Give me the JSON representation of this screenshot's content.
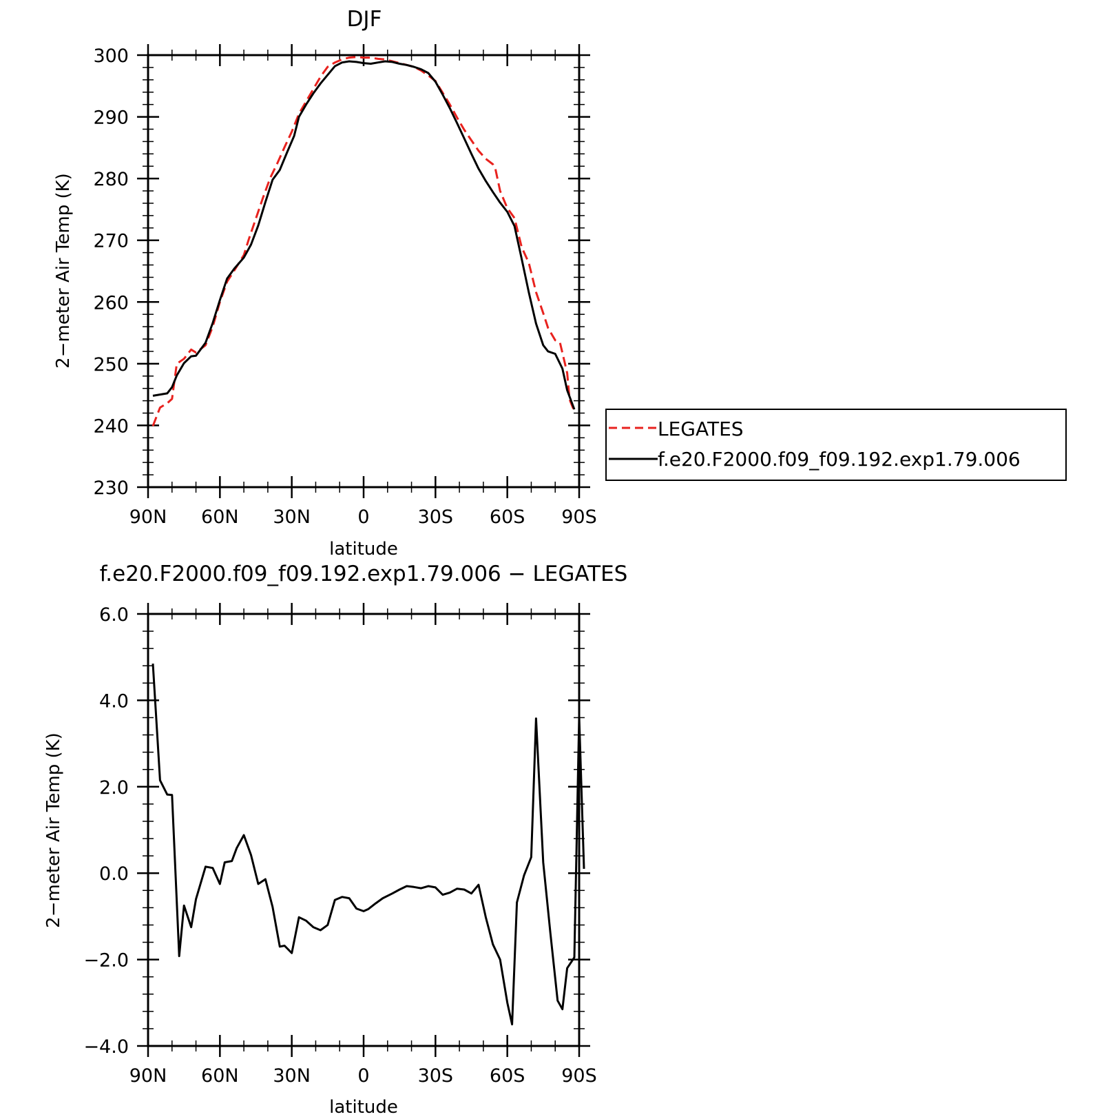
{
  "chart_data": [
    {
      "type": "line",
      "title": "DJF",
      "xlabel": "latitude",
      "ylabel": "2−meter Air Temp (K)",
      "x_tick_labels": [
        "90N",
        "60N",
        "30N",
        "0",
        "30S",
        "60S",
        "90S"
      ],
      "x_ticks": [
        90,
        60,
        30,
        0,
        -30,
        -60,
        -90
      ],
      "xlim": [
        90,
        -90
      ],
      "y_tick_labels": [
        "230",
        "240",
        "250",
        "260",
        "270",
        "280",
        "290",
        "300"
      ],
      "y_ticks": [
        230,
        240,
        250,
        260,
        270,
        280,
        290,
        300
      ],
      "ylim": [
        230,
        300
      ],
      "legend_position": "right",
      "series": [
        {
          "name": "LEGATES",
          "color": "#e8221e",
          "dash": "dashed",
          "points": [
            [
              88,
              239.9
            ],
            [
              85,
              242.9
            ],
            [
              82,
              243.6
            ],
            [
              80,
              244.3
            ],
            [
              78,
              250.0
            ],
            [
              75,
              250.8
            ],
            [
              72,
              252.3
            ],
            [
              70,
              251.8
            ],
            [
              66,
              253.0
            ],
            [
              63,
              256.0
            ],
            [
              60,
              260.0
            ],
            [
              57,
              263.3
            ],
            [
              54,
              265.1
            ],
            [
              50,
              267.6
            ],
            [
              48,
              270.1
            ],
            [
              45,
              273.5
            ],
            [
              42,
              276.9
            ],
            [
              39,
              280.1
            ],
            [
              36,
              282.5
            ],
            [
              33,
              285.1
            ],
            [
              30,
              287.6
            ],
            [
              27,
              290.5
            ],
            [
              24,
              292.5
            ],
            [
              21,
              294.5
            ],
            [
              18,
              296.5
            ],
            [
              15,
              298.1
            ],
            [
              12,
              298.8
            ],
            [
              9,
              299.3
            ],
            [
              6,
              299.6
            ],
            [
              3,
              299.7
            ],
            [
              0,
              299.6
            ],
            [
              -3,
              299.6
            ],
            [
              -6,
              299.4
            ],
            [
              -9,
              299.3
            ],
            [
              -12,
              299.0
            ],
            [
              -15,
              298.7
            ],
            [
              -18,
              298.4
            ],
            [
              -21,
              298.1
            ],
            [
              -24,
              297.5
            ],
            [
              -27,
              296.7
            ],
            [
              -30,
              295.8
            ],
            [
              -33,
              293.9
            ],
            [
              -36,
              292.0
            ],
            [
              -39,
              289.9
            ],
            [
              -42,
              287.9
            ],
            [
              -45,
              286.2
            ],
            [
              -48,
              284.5
            ],
            [
              -51,
              283.2
            ],
            [
              -54,
              282.3
            ],
            [
              -55,
              281.6
            ],
            [
              -57,
              278.0
            ],
            [
              -60,
              275.2
            ],
            [
              -63,
              273.6
            ],
            [
              -66,
              268.9
            ],
            [
              -69,
              266.3
            ],
            [
              -72,
              261.6
            ],
            [
              -75,
              258.2
            ],
            [
              -77,
              255.8
            ],
            [
              -80,
              253.8
            ],
            [
              -82,
              253.4
            ],
            [
              -85,
              248.5
            ],
            [
              -86,
              244.2
            ],
            [
              -88,
              242.3
            ]
          ]
        },
        {
          "name": "f.e20.F2000.f09_f09.192.exp1.79.006",
          "color": "#000000",
          "dash": "solid",
          "points": [
            [
              88,
              244.8
            ],
            [
              85,
              245.0
            ],
            [
              82,
              245.2
            ],
            [
              80,
              246.2
            ],
            [
              78,
              248.1
            ],
            [
              75,
              250.1
            ],
            [
              72,
              251.2
            ],
            [
              70,
              251.3
            ],
            [
              66,
              253.4
            ],
            [
              63,
              256.6
            ],
            [
              60,
              260.3
            ],
            [
              57,
              263.8
            ],
            [
              54,
              265.4
            ],
            [
              50,
              267.2
            ],
            [
              47,
              269.3
            ],
            [
              44,
              272.4
            ],
            [
              41,
              276.2
            ],
            [
              38,
              279.8
            ],
            [
              35,
              281.4
            ],
            [
              32,
              284.2
            ],
            [
              29,
              286.9
            ],
            [
              27,
              290.0
            ],
            [
              24,
              292.0
            ],
            [
              21,
              293.8
            ],
            [
              18,
              295.4
            ],
            [
              15,
              296.8
            ],
            [
              12,
              298.2
            ],
            [
              9,
              298.8
            ],
            [
              6,
              299.0
            ],
            [
              3,
              298.9
            ],
            [
              0,
              298.7
            ],
            [
              -3,
              298.6
            ],
            [
              -6,
              298.8
            ],
            [
              -9,
              299.0
            ],
            [
              -12,
              298.9
            ],
            [
              -15,
              298.6
            ],
            [
              -18,
              298.4
            ],
            [
              -21,
              298.1
            ],
            [
              -24,
              297.7
            ],
            [
              -27,
              297.1
            ],
            [
              -30,
              295.7
            ],
            [
              -33,
              293.6
            ],
            [
              -36,
              291.4
            ],
            [
              -39,
              289.0
            ],
            [
              -42,
              286.5
            ],
            [
              -45,
              284.0
            ],
            [
              -48,
              281.6
            ],
            [
              -51,
              279.6
            ],
            [
              -54,
              277.8
            ],
            [
              -57,
              276.1
            ],
            [
              -60,
              274.6
            ],
            [
              -63,
              272.3
            ],
            [
              -66,
              267.0
            ],
            [
              -69,
              261.5
            ],
            [
              -72,
              256.5
            ],
            [
              -75,
              253.0
            ],
            [
              -77,
              252.0
            ],
            [
              -80,
              251.6
            ],
            [
              -83,
              249.2
            ],
            [
              -85,
              245.7
            ],
            [
              -88,
              242.6
            ]
          ]
        }
      ]
    },
    {
      "type": "line",
      "title": "f.e20.F2000.f09_f09.192.exp1.79.006 − LEGATES",
      "xlabel": "latitude",
      "ylabel": "2−meter Air Temp (K)",
      "x_tick_labels": [
        "90N",
        "60N",
        "30N",
        "0",
        "30S",
        "60S",
        "90S"
      ],
      "x_ticks": [
        90,
        60,
        30,
        0,
        -30,
        -60,
        -90
      ],
      "xlim": [
        90,
        -90
      ],
      "y_tick_labels": [
        "−4.0",
        "−2.0",
        "0.0",
        "2.0",
        "4.0",
        "6.0"
      ],
      "y_ticks": [
        -4,
        -2,
        0,
        2,
        4,
        6
      ],
      "ylim": [
        -4,
        6
      ],
      "series": [
        {
          "name": "",
          "color": "#000000",
          "dash": "solid",
          "points": [
            [
              88,
              4.85
            ],
            [
              85,
              2.15
            ],
            [
              82,
              1.82
            ],
            [
              80,
              1.81
            ],
            [
              77,
              -1.92
            ],
            [
              75,
              -0.75
            ],
            [
              72,
              -1.25
            ],
            [
              70,
              -0.6
            ],
            [
              66,
              0.15
            ],
            [
              63,
              0.12
            ],
            [
              60,
              -0.25
            ],
            [
              58,
              0.25
            ],
            [
              55,
              0.28
            ],
            [
              53,
              0.58
            ],
            [
              50,
              0.88
            ],
            [
              47,
              0.42
            ],
            [
              44,
              -0.25
            ],
            [
              41,
              -0.14
            ],
            [
              38,
              -0.78
            ],
            [
              35,
              -1.7
            ],
            [
              33,
              -1.68
            ],
            [
              30,
              -1.85
            ],
            [
              27,
              -1.02
            ],
            [
              24,
              -1.1
            ],
            [
              21,
              -1.25
            ],
            [
              18,
              -1.32
            ],
            [
              15,
              -1.2
            ],
            [
              12,
              -0.62
            ],
            [
              9,
              -0.55
            ],
            [
              6,
              -0.58
            ],
            [
              3,
              -0.82
            ],
            [
              0,
              -0.88
            ],
            [
              -2,
              -0.83
            ],
            [
              -5,
              -0.7
            ],
            [
              -8,
              -0.58
            ],
            [
              -12,
              -0.47
            ],
            [
              -15,
              -0.38
            ],
            [
              -18,
              -0.3
            ],
            [
              -21,
              -0.32
            ],
            [
              -24,
              -0.35
            ],
            [
              -27,
              -0.3
            ],
            [
              -30,
              -0.33
            ],
            [
              -33,
              -0.5
            ],
            [
              -36,
              -0.45
            ],
            [
              -39,
              -0.36
            ],
            [
              -42,
              -0.38
            ],
            [
              -45,
              -0.47
            ],
            [
              -48,
              -0.27
            ],
            [
              -51,
              -1.02
            ],
            [
              -54,
              -1.65
            ],
            [
              -57,
              -2.0
            ],
            [
              -60,
              -3.0
            ],
            [
              -62,
              -3.5
            ],
            [
              -64,
              -0.68
            ],
            [
              -67,
              -0.05
            ],
            [
              -70,
              0.37
            ],
            [
              -72,
              3.58
            ],
            [
              -75,
              0.25
            ],
            [
              -78,
              -1.4
            ],
            [
              -81,
              -2.95
            ],
            [
              -83,
              -3.15
            ],
            [
              -85,
              -2.2
            ],
            [
              -88,
              -1.95
            ],
            [
              -90,
              3.62
            ],
            [
              -92,
              0.1
            ]
          ]
        }
      ]
    }
  ]
}
